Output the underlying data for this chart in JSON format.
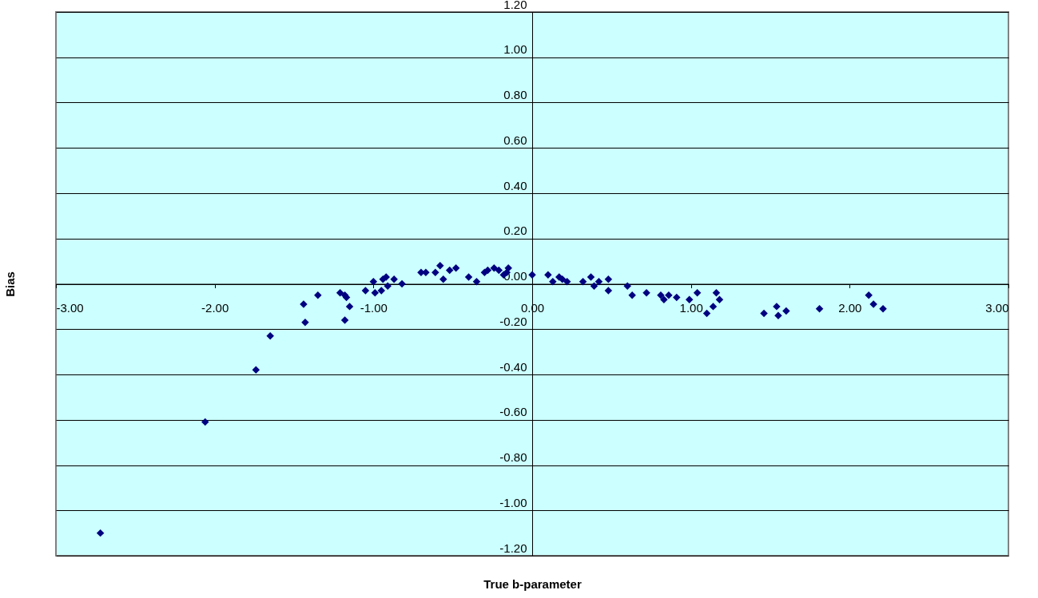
{
  "chart_data": {
    "type": "scatter",
    "xlabel": "True b-parameter",
    "ylabel": "Bias",
    "x": [
      -2.72,
      -2.06,
      -1.74,
      -1.65,
      -1.44,
      -1.43,
      -1.35,
      -1.21,
      -1.18,
      -1.17,
      -1.15,
      -1.18,
      -1.05,
      -1.0,
      -0.99,
      -0.95,
      -0.94,
      -0.92,
      -0.91,
      -0.87,
      -0.82,
      -0.7,
      -0.67,
      -0.61,
      -0.58,
      -0.56,
      -0.52,
      -0.48,
      -0.4,
      -0.35,
      -0.3,
      -0.28,
      -0.24,
      -0.21,
      -0.18,
      -0.16,
      -0.15,
      0.0,
      0.1,
      0.13,
      0.17,
      0.19,
      0.22,
      0.32,
      0.37,
      0.39,
      0.42,
      0.48,
      0.48,
      0.6,
      0.63,
      0.72,
      0.81,
      0.83,
      0.86,
      0.91,
      0.99,
      1.04,
      1.1,
      1.14,
      1.16,
      1.18,
      1.46,
      1.54,
      1.55,
      1.6,
      1.81,
      2.12,
      2.15,
      2.21
    ],
    "values": [
      -1.1,
      -0.61,
      -0.38,
      -0.23,
      -0.09,
      -0.17,
      -0.05,
      -0.04,
      -0.05,
      -0.06,
      -0.1,
      -0.16,
      -0.03,
      0.01,
      -0.04,
      -0.03,
      0.02,
      0.03,
      -0.01,
      0.02,
      0.0,
      0.05,
      0.05,
      0.05,
      0.08,
      0.02,
      0.06,
      0.07,
      0.03,
      0.01,
      0.05,
      0.06,
      0.07,
      0.06,
      0.04,
      0.05,
      0.07,
      0.04,
      0.04,
      0.01,
      0.03,
      0.02,
      0.01,
      0.01,
      0.03,
      -0.01,
      0.01,
      0.02,
      -0.03,
      -0.01,
      -0.05,
      -0.04,
      -0.05,
      -0.07,
      -0.05,
      -0.06,
      -0.07,
      -0.04,
      -0.13,
      -0.1,
      -0.04,
      -0.07,
      -0.13,
      -0.1,
      -0.14,
      -0.12,
      -0.11,
      -0.05,
      -0.09,
      -0.11
    ],
    "color": "#000080",
    "marker": "diamond",
    "grid": "y",
    "legend": false,
    "xlim": [
      -3,
      3
    ],
    "ylim": [
      -1.2,
      1.2
    ],
    "xticks": [
      {
        "value": -3,
        "label": "-3.00"
      },
      {
        "value": -2,
        "label": "-2.00"
      },
      {
        "value": -1,
        "label": "-1.00"
      },
      {
        "value": 0,
        "label": "0.00"
      },
      {
        "value": 1,
        "label": "1.00"
      },
      {
        "value": 2,
        "label": "2.00"
      },
      {
        "value": 3,
        "label": "3.00"
      }
    ],
    "yticks": [
      {
        "value": -1.2,
        "label": "-1.20"
      },
      {
        "value": -1,
        "label": "-1.00"
      },
      {
        "value": -0.8,
        "label": "-0.80"
      },
      {
        "value": -0.6,
        "label": "-0.60"
      },
      {
        "value": -0.4,
        "label": "-0.40"
      },
      {
        "value": -0.2,
        "label": "-0.20"
      },
      {
        "value": 0,
        "label": "0.00"
      },
      {
        "value": 0.2,
        "label": "0.20"
      },
      {
        "value": 0.4,
        "label": "0.40"
      },
      {
        "value": 0.6,
        "label": "0.60"
      },
      {
        "value": 0.8,
        "label": "0.80"
      },
      {
        "value": 1,
        "label": "1.00"
      },
      {
        "value": 1.2,
        "label": "1.20"
      }
    ]
  }
}
